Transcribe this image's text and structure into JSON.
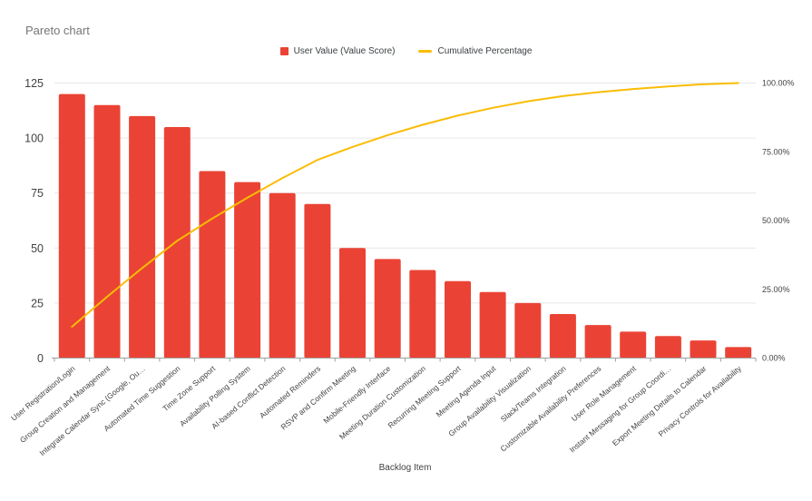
{
  "title": "Pareto chart",
  "legend": [
    {
      "label": "User Value (Value Score)",
      "color": "#EA4335",
      "shape": "square"
    },
    {
      "label": "Cumulative Percentage",
      "color": "#FBBC04",
      "shape": "line"
    }
  ],
  "colors": {
    "bar": "#EA4335",
    "line": "#FBBC04",
    "grid": "#E6E6E6",
    "axis_line": "#9E9E9E",
    "text": "#424242",
    "title": "#757575",
    "legend_text": "#3C4043",
    "background": "#FFFFFF"
  },
  "chart_data": {
    "type": "bar",
    "subtype": "pareto-combo",
    "title": "Pareto chart",
    "xlabel": "Backlog Item",
    "grid": true,
    "legend_position": "top",
    "categories": [
      "User Registration/Login",
      "Group Creation and Management",
      "Integrate Calendar Sync (Google, Ou…",
      "Automated Time Suggestion",
      "Time Zone Support",
      "Availability Polling System",
      "AI-based Conflict Detection",
      "Automated Reminders",
      "RSVP and Confirm Meeting",
      "Mobile-Friendly Interface",
      "Meeting Duration Customization",
      "Recurring Meeting Support",
      "Meeting Agenda Input",
      "Group Availability Visualization",
      "Slack/Teams Integration",
      "Customizable Availability Preferences",
      "User Role Management",
      "Instant Messaging for Group Coordi…",
      "Export Meeting Details to Calendar",
      "Privacy Controls for Availability"
    ],
    "series": [
      {
        "name": "User Value (Value Score)",
        "chart": "bar",
        "axis": "left",
        "color": "#EA4335",
        "values": [
          120,
          115,
          110,
          105,
          85,
          80,
          75,
          70,
          50,
          45,
          40,
          35,
          30,
          25,
          20,
          15,
          12,
          10,
          8,
          5
        ]
      },
      {
        "name": "Cumulative Percentage",
        "chart": "line",
        "axis": "right",
        "color": "#FBBC04",
        "values_percent": [
          11.37,
          22.27,
          32.7,
          42.65,
          50.71,
          58.29,
          65.4,
          72.04,
          76.78,
          81.04,
          84.83,
          88.15,
          91.0,
          93.36,
          95.26,
          96.68,
          97.82,
          98.77,
          99.53,
          100.0
        ]
      }
    ],
    "left_axis": {
      "ticks": [
        0,
        25,
        50,
        75,
        100,
        125
      ],
      "range": [
        0,
        125
      ]
    },
    "right_axis": {
      "ticks": [
        "0.00%",
        "25.00%",
        "50.00%",
        "75.00%",
        "100.00%"
      ],
      "range": [
        0,
        100
      ]
    }
  }
}
